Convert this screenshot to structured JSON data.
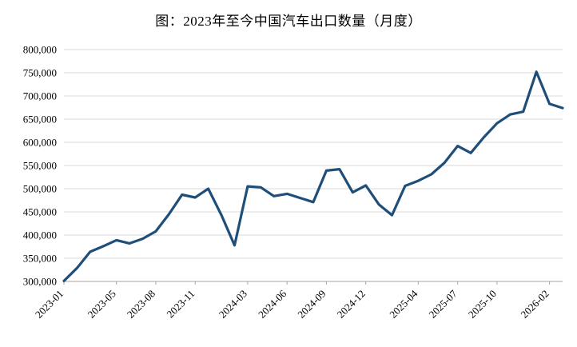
{
  "page": {
    "background": "#ffffff"
  },
  "chart_data": {
    "type": "line",
    "title": "图：2023年至今中国汽车出口数量（月度）",
    "xlabel": "",
    "ylabel": "",
    "ylim": [
      300000,
      800000
    ],
    "y_ticks": [
      300000,
      350000,
      400000,
      450000,
      500000,
      550000,
      600000,
      650000,
      700000,
      750000,
      800000
    ],
    "grid": true,
    "legend_position": "none",
    "x_label_rotation": -45,
    "line_color": "#1f4e79",
    "grid_color": "#d9d9d9",
    "axis_color": "#a6a6a6",
    "x": [
      "2023-01",
      "2023-02",
      "2023-03",
      "2023-04",
      "2023-05",
      "2023-06",
      "2023-07",
      "2023-08",
      "2023-09",
      "2023-10",
      "2023-11",
      "2023-12",
      "2024-01",
      "2024-02",
      "2024-03",
      "2024-04",
      "2024-05",
      "2024-06",
      "2024-07",
      "2024-08",
      "2024-09",
      "2024-10",
      "2024-11",
      "2024-12",
      "2025-01",
      "2025-02",
      "2025-03",
      "2025-04",
      "2025-05",
      "2025-06",
      "2025-07",
      "2025-08",
      "2025-09",
      "2025-10",
      "2025-11",
      "2025-12",
      "2026-01",
      "2026-02",
      "2026-03"
    ],
    "values": [
      301000,
      329000,
      364000,
      376000,
      389000,
      382000,
      392000,
      408000,
      445000,
      487000,
      481000,
      500000,
      443000,
      378000,
      505000,
      503000,
      484000,
      489000,
      480000,
      471000,
      539000,
      542000,
      492000,
      507000,
      466000,
      443000,
      506000,
      517000,
      531000,
      556000,
      592000,
      577000,
      611000,
      641000,
      660000,
      666000,
      752000,
      683000,
      674000
    ],
    "x_tick_labels": [
      "2023-01",
      "2023-05",
      "2023-08",
      "2023-11",
      "2024-03",
      "2024-06",
      "2024-09",
      "2024-12",
      "2025-04",
      "2025-07",
      "2025-10",
      "2026-02"
    ]
  }
}
